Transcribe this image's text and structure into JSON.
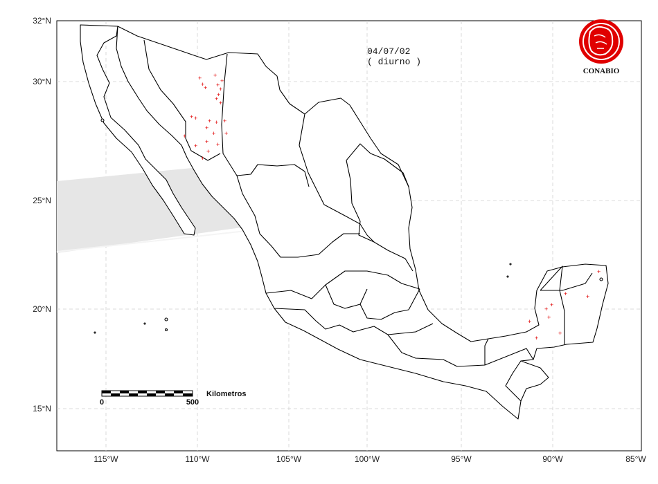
{
  "map": {
    "date": "04/07/02",
    "period": "( diurno )",
    "logo_text": "CONABIO",
    "lon_ticks": [
      "115°W",
      "110°W",
      "105°W",
      "100°W",
      "95°W",
      "90°W",
      "85°W"
    ],
    "lat_ticks": [
      "32°N",
      "30°N",
      "25°N",
      "20°N",
      "15°N"
    ],
    "scale_bar": {
      "label": "Kilometros",
      "start": "0",
      "end": "500"
    },
    "colors": {
      "hotspot": "#e00000",
      "swath": "#e6e6e6",
      "land_stroke": "#000000",
      "grid": "#d0d0d0"
    }
  }
}
